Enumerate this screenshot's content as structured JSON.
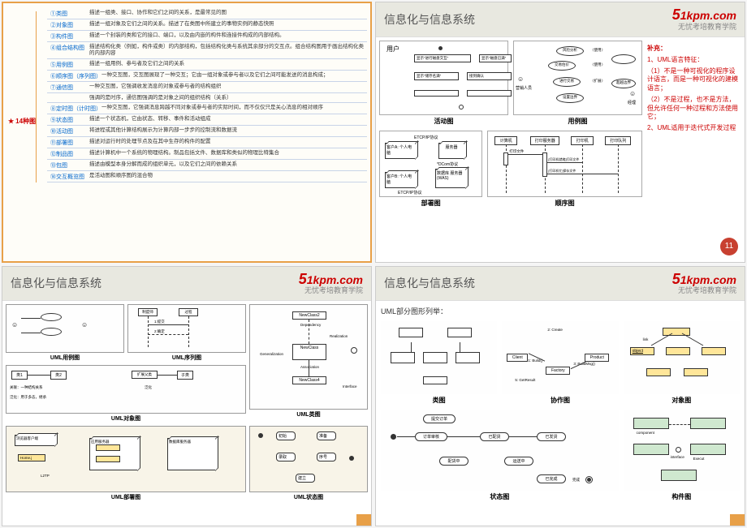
{
  "common": {
    "title": "信息化与信息系统",
    "logo_main": "1kpm.com",
    "logo_five": "5",
    "logo_sub": "无忧考培教育学院"
  },
  "slide1": {
    "root": "14种图",
    "branches": [
      {
        "label": "①类图",
        "desc": "描述一组类、接口、协作和它们之间的关系，是最常见的图"
      },
      {
        "label": "②对象图",
        "desc": "描述一组对象及它们之间的关系。描述了在类图中所建立的事物实例的静态快照"
      },
      {
        "label": "③构件图",
        "desc": "描述一个封装的类和它的接口、端口，以及由内嵌的构件和连接件构成的内部结构。"
      },
      {
        "label": "④组合结构图",
        "desc": "描述结构化类（例如，构件或类）的内部结构，包括结构化类与系统其余部分的交互点。组合结构图用于画出结构化类的内部内容"
      },
      {
        "label": "⑤用例图",
        "desc": "描述一组用例、参与者及它们之间的关系"
      },
      {
        "label": "⑥顺序图（序列图）",
        "desc": "一种交互图，交互图展现了一种交互；它由一组对象或参与者以及它们之间可能发送的消息构成；"
      },
      {
        "label": "⑦通信图",
        "desc": "一种交互图，它强调收发消息的对象或参与者的结构组织"
      },
      {
        "label": "",
        "desc": "强调的是时序，通信图强调的是对象之间的组织结构（关系）"
      },
      {
        "label": "⑧定时图（计时图）",
        "desc": "一种交互图，它强调消息跨越不同对象或参与者的实际时间，而不仅仅只是关心消息的相对顺序"
      },
      {
        "label": "⑨状态图",
        "desc": "描述一个状态机，它由状态、转移、事件和活动组成"
      },
      {
        "label": "⑩活动图",
        "desc": "将进程或其他计算结构展示为计算内部一步步的控制流和数据流"
      },
      {
        "label": "⑪部署图",
        "desc": "描述对运行时的处理节点及在其中生存的构件的配置"
      },
      {
        "label": "⑫制品图",
        "desc": "描述计算机中一个系统的物理结构。制品包括文件、数据库和类似的物理比特集合"
      },
      {
        "label": "⑬包图",
        "desc": "描述由模型本身分解而成的组织单元，以及它们之间的依赖关系"
      },
      {
        "label": "⑭交互概览图",
        "desc": "是活动图和顺序图的混合物"
      }
    ]
  },
  "slide2": {
    "diag_labels": [
      "活动图",
      "用例图",
      "部署图",
      "顺序图"
    ],
    "notes_title": "补充：",
    "notes": [
      "1、UML语言特征：",
      "（1）不是一种可视化的程序设计语言，而是一种可视化的建模语言；",
      "（2）不是过程，也不是方法，但允许任何一种过程和方法使用它；",
      "2、UML适用于迭代式开发过程"
    ],
    "page_num": "11",
    "activity": {
      "n1": "用户",
      "n2": "显示\"进行磁盘交互\"",
      "n3": "显示\"磁盘已满\"",
      "n4": "显示\"储存名满\"",
      "n5": "接到确认"
    },
    "usecase": {
      "a1": "营销人员",
      "a2": "经理",
      "u1": "风险分析",
      "u2": "交易估价",
      "u3": "进行交易",
      "u4": "设置边界",
      "u5": "〈使用〉",
      "u6": "〈扩展〉",
      "u7": "超越边界"
    },
    "deploy": {
      "n1": "客户A:\n个人电脑",
      "n2": "服务器",
      "n3": "客户B:\n个人电脑",
      "n4": "数据库\n服务器\n(WAS)",
      "p1": "ETCP/IP协议",
      "p2": "ETCP/IP协议",
      "p3": "*DCom协议"
    },
    "sequence": {
      "a1": "计算机",
      "a2": "打印服务器",
      "a3": "打印机",
      "a4": "打印队列",
      "m1": "打印文件",
      "m2": "[打印机就绪]打印文件",
      "m3": "[打印机忙]保存文件"
    }
  },
  "slide3": {
    "labels": [
      "UML用例图",
      "UML序列图",
      "UML类图",
      "UML对象图",
      "UML部署图",
      "UML状态图"
    ],
    "rel_labels": {
      "k1": "类1",
      "k2": "类2",
      "k3": "扩展父类",
      "k4": "子类",
      "gx": "关联：一种结构关系",
      "fh": "泛化：用于多态，继承"
    },
    "seq": {
      "t1": "制度师",
      "t2": "过程",
      "t3": "1:提交",
      "t4": "2:确定"
    },
    "class": {
      "c1": "NewClass2",
      "c2": "NewClass",
      "c3": "NewClass4",
      "d1": "Dependency",
      "d2": "Realization",
      "d3": "Generalization",
      "d4": "Association",
      "i1": "Interface"
    },
    "deploy": {
      "n1": "浏览器客户端",
      "n2": "应用服务器",
      "n3": "数据库服务器",
      "n4": "L2TP",
      "n5": "Home.j"
    },
    "state": {
      "s1": "准备",
      "s2": "初始",
      "s3": "录取",
      "s4": "序号",
      "s5": "建立"
    }
  },
  "slide4": {
    "subtitle": "UML部分图形列举：",
    "labels": [
      "类图",
      "协作图",
      "对象图",
      "状态图",
      "构件图"
    ],
    "class": {
      "c1": "Client",
      "c2": "Factory",
      "c3": "Product",
      "m1": "2: Create",
      "m2": "1: Build()",
      "m3": "3: BuildMsg()",
      "m4": "5: GetResult"
    },
    "obj": {
      "o1": "object",
      "o2": "link"
    },
    "state": {
      "s1": "提交订单",
      "s2": "订单审核",
      "s3": "配货中",
      "s4": "已发货",
      "s5": "已完成",
      "s6": "运送中",
      "s7": "已配货",
      "s8": "完成"
    },
    "comp": {
      "c1": "component",
      "c2": "Execut",
      "c3": "interface"
    }
  }
}
